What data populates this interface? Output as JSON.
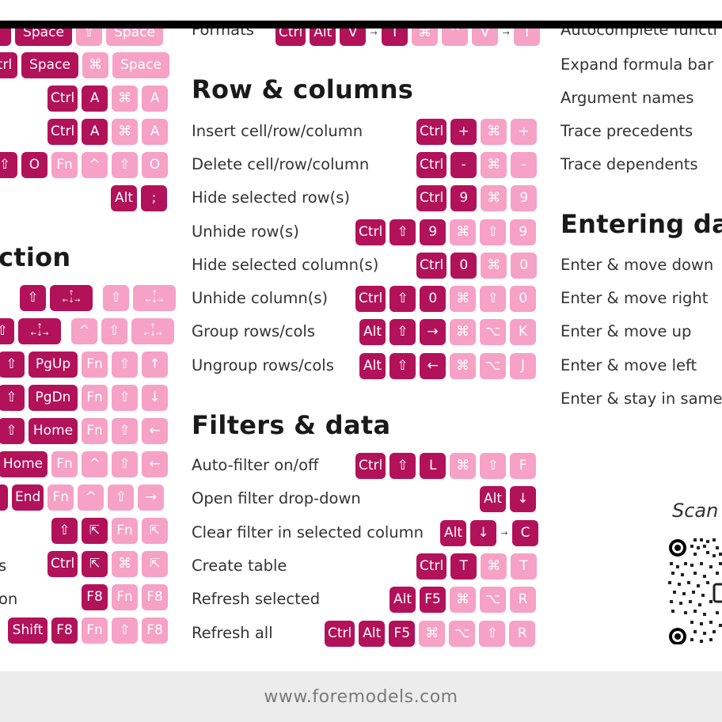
{
  "footer": {
    "url": "www.foremodels.com"
  },
  "colors": {
    "windows_key": "#b2125a",
    "mac_key": "#f6a1c6"
  },
  "left_column": {
    "heading_partial": "ction",
    "rows": [
      {
        "win": [
          "…",
          "Space"
        ],
        "mac": [
          "⇧",
          "Space"
        ]
      },
      {
        "win": [
          "trl",
          "Space"
        ],
        "mac": [
          "⌘",
          "Space"
        ]
      },
      {
        "win": [
          "Ctrl",
          "A"
        ],
        "mac": [
          "⌘",
          "A"
        ]
      },
      {
        "win": [
          "Ctrl",
          "A"
        ],
        "mac": [
          "⌘",
          "A"
        ]
      },
      {
        "win": [
          "⇧",
          "O"
        ],
        "mac": [
          "Fn",
          "^",
          "⇧",
          "O"
        ]
      },
      {
        "win": [
          "Alt",
          ";"
        ],
        "mac": []
      },
      {
        "win": [
          "⇧",
          "↑←↓→"
        ],
        "mac": [
          "⇧",
          "↑←↓→"
        ]
      },
      {
        "win": [
          "⇧",
          "↑←↓→"
        ],
        "mac": [
          "^",
          "⇧",
          "↑←↓→"
        ]
      },
      {
        "win": [
          "⇧",
          "PgUp"
        ],
        "mac": [
          "Fn",
          "⇧",
          "↑"
        ]
      },
      {
        "win": [
          "⇧",
          "PgDn"
        ],
        "mac": [
          "Fn",
          "⇧",
          "↓"
        ]
      },
      {
        "win": [
          "⇧",
          "Home"
        ],
        "mac": [
          "Fn",
          "⇧",
          "←"
        ]
      },
      {
        "win": [
          "Home"
        ],
        "mac": [
          "Fn",
          "^",
          "⇧",
          "←"
        ]
      },
      {
        "win": [
          "End"
        ],
        "mac": [
          "Fn",
          "^",
          "⇧",
          "→"
        ]
      },
      {
        "win": [
          "⇧",
          "⇱"
        ],
        "mac": [
          "Fn",
          "⇱"
        ]
      },
      {
        "label": "s",
        "win": [
          "Ctrl",
          "⇱"
        ],
        "mac": [
          "⌘",
          "⇱"
        ]
      },
      {
        "label": "on",
        "win": [
          "F8"
        ],
        "mac": [
          "Fn",
          "F8"
        ]
      },
      {
        "win": [
          "Shift",
          "F8"
        ],
        "mac": [
          "Fn",
          "⇧",
          "F8"
        ]
      }
    ]
  },
  "middle_column": {
    "formats_label": "Formats",
    "formats_win": [
      "Ctrl",
      "Alt",
      "V",
      "→",
      "T"
    ],
    "formats_mac": [
      "⌘",
      "^",
      "V",
      "→",
      "T"
    ],
    "rows_heading": "Row & columns",
    "rows": [
      {
        "label": "Insert cell/row/column",
        "win": [
          "Ctrl",
          "+"
        ],
        "mac": [
          "⌘",
          "+"
        ]
      },
      {
        "label": "Delete cell/row/column",
        "win": [
          "Ctrl",
          "-"
        ],
        "mac": [
          "⌘",
          "-"
        ]
      },
      {
        "label": "Hide selected row(s)",
        "win": [
          "Ctrl",
          "9"
        ],
        "mac": [
          "⌘",
          "9"
        ]
      },
      {
        "label": "Unhide row(s)",
        "win": [
          "Ctrl",
          "⇧",
          "9"
        ],
        "mac": [
          "⌘",
          "⇧",
          "9"
        ]
      },
      {
        "label": "Hide selected column(s)",
        "win": [
          "Ctrl",
          "0"
        ],
        "mac": [
          "⌘",
          "0"
        ]
      },
      {
        "label": "Unhide column(s)",
        "win": [
          "Ctrl",
          "⇧",
          "0"
        ],
        "mac": [
          "⌘",
          "⇧",
          "0"
        ]
      },
      {
        "label": "Group rows/cols",
        "win": [
          "Alt",
          "⇧",
          "→"
        ],
        "mac": [
          "⌘",
          "⌥",
          "K"
        ]
      },
      {
        "label": "Ungroup rows/cols",
        "win": [
          "Alt",
          "⇧",
          "←"
        ],
        "mac": [
          "⌘",
          "⌥",
          "J"
        ]
      }
    ],
    "filters_heading": "Filters & data",
    "filters": [
      {
        "label": "Auto-filter on/off",
        "win": [
          "Ctrl",
          "⇧",
          "L"
        ],
        "mac": [
          "⌘",
          "⇧",
          "F"
        ]
      },
      {
        "label": "Open filter drop-down",
        "win": [
          "Alt",
          "↓"
        ],
        "mac": []
      },
      {
        "label": "Clear filter in selected column",
        "win": [
          "Alt",
          "↓",
          "→",
          "C"
        ],
        "mac": []
      },
      {
        "label": "Create table",
        "win": [
          "Ctrl",
          "T"
        ],
        "mac": [
          "⌘",
          "T"
        ]
      },
      {
        "label": "Refresh selected",
        "win": [
          "Alt",
          "F5"
        ],
        "mac": [
          "⌘",
          "⌥",
          "R"
        ]
      },
      {
        "label": "Refresh all",
        "win": [
          "Ctrl",
          "Alt",
          "F5"
        ],
        "mac": [
          "⌘",
          "⌥",
          "⇧",
          "R"
        ]
      }
    ]
  },
  "right_column": {
    "items_top": [
      "Autocomplete functi",
      "Expand formula bar",
      "Argument names",
      "Trace precedents",
      "Trace dependents"
    ],
    "entering_heading": "Entering da",
    "entering_items": [
      "Enter & move down",
      "Enter & move right",
      "Enter & move up",
      "Enter & move left",
      "Enter & stay in same"
    ],
    "qr_title": "Scan"
  }
}
